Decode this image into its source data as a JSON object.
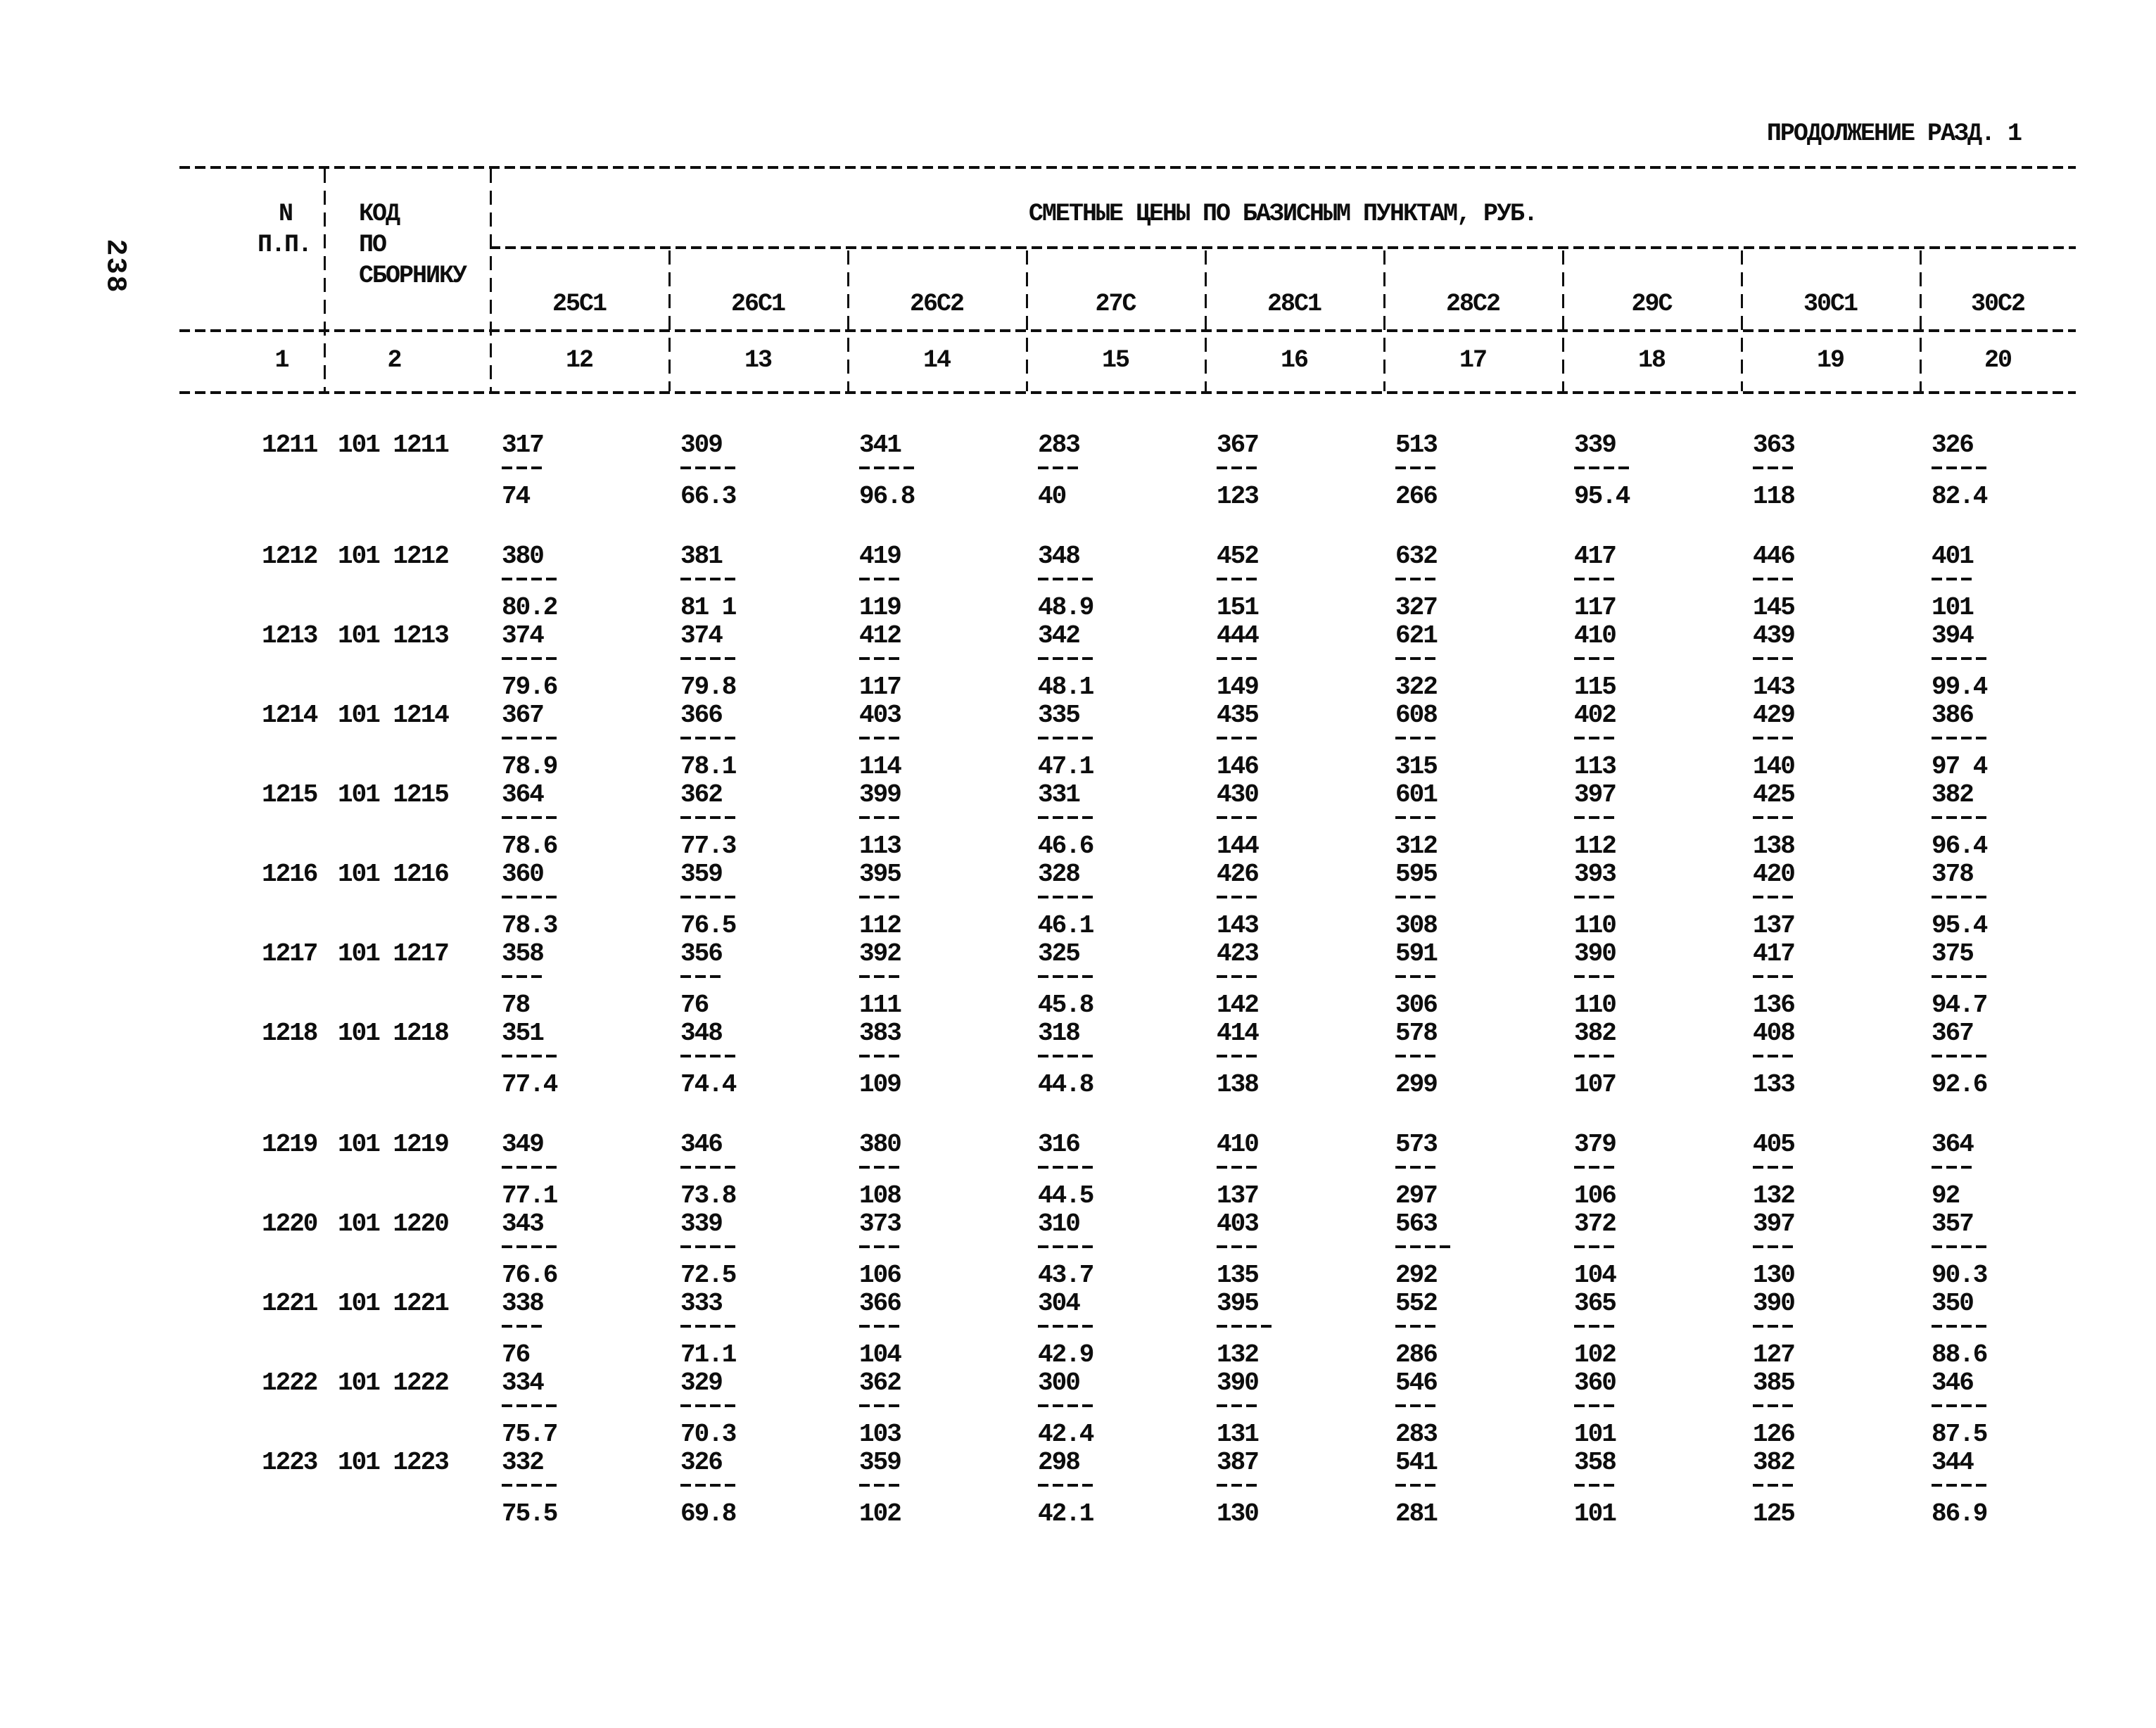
{
  "page": {
    "page_number": "238",
    "continuation_title": "ПРОДОЛЖЕНИЕ РАЗД. 1"
  },
  "table": {
    "header": {
      "col1_line1": "N",
      "col1_line2": "П.П.",
      "col2_line1": "КОД",
      "col2_line2": "ПО",
      "col2_line3": "СБОРНИКУ",
      "group_title": "СМЕТНЫЕ ЦЕНЫ ПО БАЗИСНЫМ ПУНКТАМ, РУБ.",
      "col1_num": "1",
      "col2_num": "2",
      "columns": [
        {
          "label": "25С1",
          "num": "12"
        },
        {
          "label": "26С1",
          "num": "13"
        },
        {
          "label": "26С2",
          "num": "14"
        },
        {
          "label": "27С",
          "num": "15"
        },
        {
          "label": "28С1",
          "num": "16"
        },
        {
          "label": "28С2",
          "num": "17"
        },
        {
          "label": "29С",
          "num": "18"
        },
        {
          "label": "30С1",
          "num": "19"
        },
        {
          "label": "30С2",
          "num": "20"
        }
      ]
    },
    "rows": [
      {
        "npp": "1211",
        "code": "101 1211",
        "cells": [
          [
            "317",
            "74",
            3
          ],
          [
            "309",
            "66.3",
            4
          ],
          [
            "341",
            "96.8",
            4
          ],
          [
            "283",
            "40",
            3
          ],
          [
            "367",
            "123",
            3
          ],
          [
            "513",
            "266",
            3
          ],
          [
            "339",
            "95.4",
            4
          ],
          [
            "363",
            "118",
            3
          ],
          [
            "326",
            "82.4",
            4
          ]
        ]
      },
      {
        "npp": "1212",
        "code": "101 1212",
        "cells": [
          [
            "380",
            "80.2",
            4
          ],
          [
            "381",
            "81 1",
            4
          ],
          [
            "419",
            "119",
            3
          ],
          [
            "348",
            "48.9",
            4
          ],
          [
            "452",
            "151",
            3
          ],
          [
            "632",
            "327",
            3
          ],
          [
            "417",
            "117",
            3
          ],
          [
            "446",
            "145",
            3
          ],
          [
            "401",
            "101",
            3
          ]
        ]
      },
      {
        "npp": "1213",
        "code": "101 1213",
        "cells": [
          [
            "374",
            "79.6",
            4
          ],
          [
            "374",
            "79.8",
            4
          ],
          [
            "412",
            "117",
            3
          ],
          [
            "342",
            "48.1",
            4
          ],
          [
            "444",
            "149",
            3
          ],
          [
            "621",
            "322",
            3
          ],
          [
            "410",
            "115",
            3
          ],
          [
            "439",
            "143",
            3
          ],
          [
            "394",
            "99.4",
            4
          ]
        ]
      },
      {
        "npp": "1214",
        "code": "101 1214",
        "cells": [
          [
            "367",
            "78.9",
            4
          ],
          [
            "366",
            "78.1",
            4
          ],
          [
            "403",
            "114",
            3
          ],
          [
            "335",
            "47.1",
            4
          ],
          [
            "435",
            "146",
            3
          ],
          [
            "608",
            "315",
            3
          ],
          [
            "402",
            "113",
            3
          ],
          [
            "429",
            "140",
            3
          ],
          [
            "386",
            "97 4",
            4
          ]
        ]
      },
      {
        "npp": "1215",
        "code": "101 1215",
        "cells": [
          [
            "364",
            "78.6",
            4
          ],
          [
            "362",
            "77.3",
            4
          ],
          [
            "399",
            "113",
            3
          ],
          [
            "331",
            "46.6",
            4
          ],
          [
            "430",
            "144",
            3
          ],
          [
            "601",
            "312",
            3
          ],
          [
            "397",
            "112",
            3
          ],
          [
            "425",
            "138",
            3
          ],
          [
            "382",
            "96.4",
            4
          ]
        ]
      },
      {
        "npp": "1216",
        "code": "101 1216",
        "cells": [
          [
            "360",
            "78.3",
            4
          ],
          [
            "359",
            "76.5",
            4
          ],
          [
            "395",
            "112",
            3
          ],
          [
            "328",
            "46.1",
            4
          ],
          [
            "426",
            "143",
            3
          ],
          [
            "595",
            "308",
            3
          ],
          [
            "393",
            "110",
            3
          ],
          [
            "420",
            "137",
            3
          ],
          [
            "378",
            "95.4",
            4
          ]
        ]
      },
      {
        "npp": "1217",
        "code": "101 1217",
        "cells": [
          [
            "358",
            "78",
            3
          ],
          [
            "356",
            "76",
            3
          ],
          [
            "392",
            "111",
            3
          ],
          [
            "325",
            "45.8",
            4
          ],
          [
            "423",
            "142",
            3
          ],
          [
            "591",
            "306",
            3
          ],
          [
            "390",
            "110",
            3
          ],
          [
            "417",
            "136",
            3
          ],
          [
            "375",
            "94.7",
            4
          ]
        ]
      },
      {
        "npp": "1218",
        "code": "101 1218",
        "cells": [
          [
            "351",
            "77.4",
            4
          ],
          [
            "348",
            "74.4",
            4
          ],
          [
            "383",
            "109",
            3
          ],
          [
            "318",
            "44.8",
            4
          ],
          [
            "414",
            "138",
            3
          ],
          [
            "578",
            "299",
            3
          ],
          [
            "382",
            "107",
            3
          ],
          [
            "408",
            "133",
            3
          ],
          [
            "367",
            "92.6",
            4
          ]
        ]
      },
      {
        "npp": "1219",
        "code": "101 1219",
        "cells": [
          [
            "349",
            "77.1",
            4
          ],
          [
            "346",
            "73.8",
            4
          ],
          [
            "380",
            "108",
            3
          ],
          [
            "316",
            "44.5",
            4
          ],
          [
            "410",
            "137",
            3
          ],
          [
            "573",
            "297",
            3
          ],
          [
            "379",
            "106",
            3
          ],
          [
            "405",
            "132",
            3
          ],
          [
            "364",
            "92",
            3
          ]
        ]
      },
      {
        "npp": "1220",
        "code": "101 1220",
        "cells": [
          [
            "343",
            "76.6",
            4
          ],
          [
            "339",
            "72.5",
            4
          ],
          [
            "373",
            "106",
            3
          ],
          [
            "310",
            "43.7",
            4
          ],
          [
            "403",
            "135",
            3
          ],
          [
            "563",
            "292",
            4
          ],
          [
            "372",
            "104",
            3
          ],
          [
            "397",
            "130",
            3
          ],
          [
            "357",
            "90.3",
            4
          ]
        ]
      },
      {
        "npp": "1221",
        "code": "101 1221",
        "cells": [
          [
            "338",
            "76",
            3
          ],
          [
            "333",
            "71.1",
            4
          ],
          [
            "366",
            "104",
            3
          ],
          [
            "304",
            "42.9",
            4
          ],
          [
            "395",
            "132",
            4
          ],
          [
            "552",
            "286",
            3
          ],
          [
            "365",
            "102",
            3
          ],
          [
            "390",
            "127",
            3
          ],
          [
            "350",
            "88.6",
            4
          ]
        ]
      },
      {
        "npp": "1222",
        "code": "101 1222",
        "cells": [
          [
            "334",
            "75.7",
            4
          ],
          [
            "329",
            "70.3",
            4
          ],
          [
            "362",
            "103",
            3
          ],
          [
            "300",
            "42.4",
            4
          ],
          [
            "390",
            "131",
            3
          ],
          [
            "546",
            "283",
            3
          ],
          [
            "360",
            "101",
            3
          ],
          [
            "385",
            "126",
            3
          ],
          [
            "346",
            "87.5",
            4
          ]
        ]
      },
      {
        "npp": "1223",
        "code": "101 1223",
        "cells": [
          [
            "332",
            "75.5",
            4
          ],
          [
            "326",
            "69.8",
            4
          ],
          [
            "359",
            "102",
            3
          ],
          [
            "298",
            "42.1",
            4
          ],
          [
            "387",
            "130",
            3
          ],
          [
            "541",
            "281",
            3
          ],
          [
            "358",
            "101",
            3
          ],
          [
            "382",
            "125",
            3
          ],
          [
            "344",
            "86.9",
            4
          ]
        ]
      }
    ]
  }
}
